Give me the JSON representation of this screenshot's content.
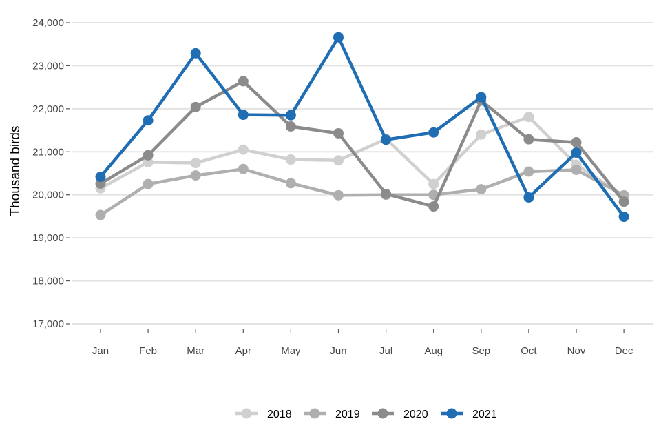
{
  "chart_data": {
    "type": "line",
    "title": "",
    "xlabel": "",
    "ylabel": "Thousand birds",
    "ylim": [
      16800,
      24200
    ],
    "yticks": [
      17000,
      18000,
      19000,
      20000,
      21000,
      22000,
      23000,
      24000
    ],
    "ytick_labels": [
      "17,000",
      "18,000",
      "19,000",
      "20,000",
      "21,000",
      "22,000",
      "23,000",
      "24,000"
    ],
    "grid": "horizontal",
    "categories": [
      "Jan",
      "Feb",
      "Mar",
      "Apr",
      "May",
      "Jun",
      "Jul",
      "Aug",
      "Sep",
      "Oct",
      "Nov",
      "Dec"
    ],
    "legend_position": "bottom-center",
    "series": [
      {
        "name": "2018",
        "color": "#d0d0d0",
        "values": [
          20150,
          20760,
          20740,
          21050,
          20820,
          20800,
          21300,
          20250,
          21400,
          21810,
          20700,
          19970
        ]
      },
      {
        "name": "2019",
        "color": "#b0afaf",
        "values": [
          19530,
          20250,
          20450,
          20600,
          20270,
          19990,
          20000,
          20000,
          20130,
          20540,
          20580,
          19990
        ]
      },
      {
        "name": "2020",
        "color": "#8c8a8a",
        "values": [
          20260,
          20920,
          22040,
          22640,
          21590,
          21430,
          20020,
          19730,
          22190,
          21290,
          21220,
          19840
        ]
      },
      {
        "name": "2021",
        "color": "#1f6db2",
        "values": [
          20420,
          21730,
          23290,
          21860,
          21850,
          23660,
          21280,
          21450,
          22270,
          19940,
          20980,
          19490
        ]
      }
    ]
  }
}
